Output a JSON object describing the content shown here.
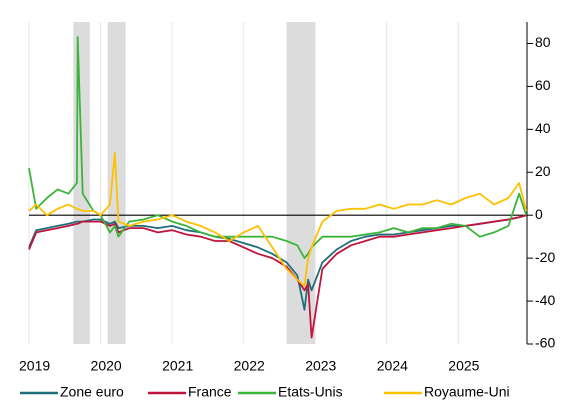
{
  "chart_data": {
    "type": "line",
    "x": [
      2019.0,
      2019.1,
      2019.25,
      2019.4,
      2019.55,
      2019.67,
      2019.68,
      2019.75,
      2019.9,
      2020.0,
      2020.13,
      2020.2,
      2020.25,
      2020.4,
      2020.6,
      2020.8,
      2021.0,
      2021.2,
      2021.4,
      2021.6,
      2021.8,
      2022.0,
      2022.2,
      2022.4,
      2022.6,
      2022.75,
      2022.85,
      2022.9,
      2022.95,
      2023.1,
      2023.3,
      2023.5,
      2023.7,
      2023.9,
      2024.1,
      2024.3,
      2024.5,
      2024.7,
      2024.9,
      2025.1,
      2025.3,
      2025.5,
      2025.7,
      2025.85,
      2025.95
    ],
    "series": [
      {
        "name": "Zone euro",
        "color": "#1f6e7a",
        "values": [
          -15,
          -7,
          -6,
          -5,
          -4,
          -3,
          -3,
          -3,
          -2,
          -2,
          -4,
          -3,
          -6,
          -5,
          -5,
          -6,
          -5,
          -7,
          -8,
          -10,
          -11,
          -13,
          -15,
          -18,
          -22,
          -28,
          -44,
          -30,
          -35,
          -22,
          -16,
          -12,
          -10,
          -9,
          -9,
          -8,
          -7,
          -6,
          -5,
          -5,
          -4,
          -3,
          -2,
          -1,
          0
        ]
      },
      {
        "name": "France",
        "color": "#c0143c",
        "values": [
          -16,
          -8,
          -7,
          -6,
          -5,
          -4,
          -4,
          -3,
          -3,
          -3,
          -5,
          -4,
          -8,
          -6,
          -6,
          -8,
          -7,
          -9,
          -10,
          -12,
          -12,
          -15,
          -18,
          -20,
          -24,
          -30,
          -35,
          -32,
          -57,
          -25,
          -18,
          -14,
          -12,
          -10,
          -10,
          -9,
          -8,
          -7,
          -6,
          -5,
          -4,
          -3,
          -2,
          -1,
          0
        ]
      },
      {
        "name": "Etats-Unis",
        "color": "#3cb43c",
        "values": [
          22,
          3,
          8,
          12,
          10,
          15,
          83,
          10,
          2,
          0,
          -8,
          -5,
          -10,
          -3,
          -2,
          0,
          -3,
          -5,
          -8,
          -10,
          -10,
          -10,
          -10,
          -10,
          -12,
          -14,
          -20,
          -18,
          -15,
          -10,
          -10,
          -10,
          -9,
          -8,
          -6,
          -8,
          -6,
          -6,
          -4,
          -5,
          -10,
          -8,
          -5,
          10,
          0
        ]
      },
      {
        "name": "Royaume-Uni",
        "color": "#ffc000",
        "values": [
          2,
          5,
          0,
          3,
          5,
          3,
          3,
          2,
          2,
          0,
          5,
          29,
          -3,
          -5,
          -3,
          -2,
          0,
          -3,
          -5,
          -8,
          -12,
          -8,
          -5,
          -15,
          -25,
          -30,
          -33,
          -20,
          -15,
          -3,
          2,
          3,
          3,
          5,
          3,
          5,
          5,
          7,
          5,
          8,
          10,
          5,
          8,
          15,
          2
        ]
      }
    ],
    "shaded": [
      [
        2019.62,
        2019.85
      ],
      [
        2020.1,
        2020.35
      ],
      [
        2022.6,
        2023.0
      ]
    ],
    "xlim": [
      2019,
      2025.96
    ],
    "xticks": [
      2019,
      2020,
      2021,
      2022,
      2023,
      2024,
      2025
    ],
    "ylim": [
      -60,
      90
    ],
    "yticks": [
      -60,
      -40,
      -20,
      0,
      20,
      40,
      60,
      80
    ],
    "grid": true,
    "legend": "bottom"
  }
}
